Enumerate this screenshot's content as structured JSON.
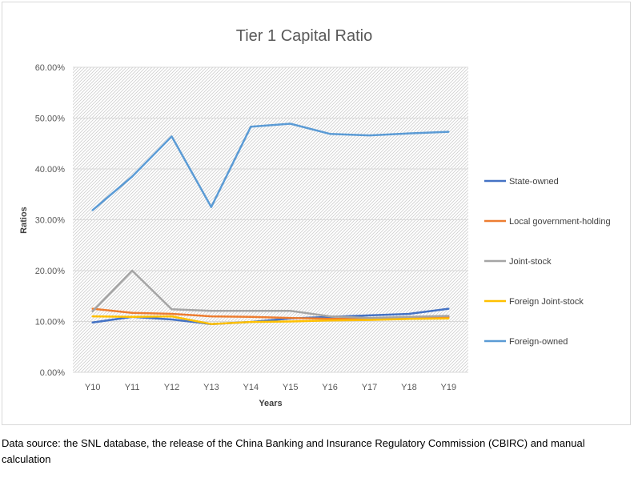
{
  "caption": "Data source: the SNL database, the release of the China Banking and Insurance Regulatory Commission (CBIRC) and manual calculation",
  "chart_data": {
    "type": "line",
    "title": "Tier 1 Capital Ratio",
    "xlabel": "Years",
    "ylabel": "Ratios",
    "categories": [
      "Y10",
      "Y11",
      "Y12",
      "Y13",
      "Y14",
      "Y15",
      "Y16",
      "Y17",
      "Y18",
      "Y19"
    ],
    "ylim": [
      0,
      0.6
    ],
    "yticks": [
      0,
      0.1,
      0.2,
      0.3,
      0.4,
      0.5,
      0.6
    ],
    "ytick_labels": [
      "0.00%",
      "10.00%",
      "20.00%",
      "30.00%",
      "40.00%",
      "50.00%",
      "60.00%"
    ],
    "legend_position": "right",
    "plot_background": "diagonal-hatch",
    "series": [
      {
        "name": "State-owned",
        "color": "#4472c4",
        "values": [
          0.098,
          0.109,
          0.104,
          0.095,
          0.099,
          0.106,
          0.109,
          0.112,
          0.115,
          0.125
        ]
      },
      {
        "name": "Local government-holding",
        "color": "#ed7d31",
        "values": [
          0.125,
          0.117,
          0.115,
          0.11,
          0.109,
          0.107,
          0.105,
          0.106,
          0.107,
          0.109
        ]
      },
      {
        "name": "Joint-stock",
        "color": "#a5a5a5",
        "values": [
          0.12,
          0.2,
          0.124,
          0.121,
          0.121,
          0.121,
          0.11,
          0.107,
          0.109,
          0.111
        ]
      },
      {
        "name": "Foreign Joint-stock",
        "color": "#ffc000",
        "values": [
          0.11,
          0.109,
          0.11,
          0.095,
          0.099,
          0.1,
          0.102,
          0.103,
          0.105,
          0.106
        ]
      },
      {
        "name": "Foreign-owned",
        "color": "#5b9bd5",
        "values": [
          0.319,
          0.385,
          0.464,
          0.325,
          0.483,
          0.489,
          0.469,
          0.466,
          0.47,
          0.473
        ]
      }
    ]
  }
}
